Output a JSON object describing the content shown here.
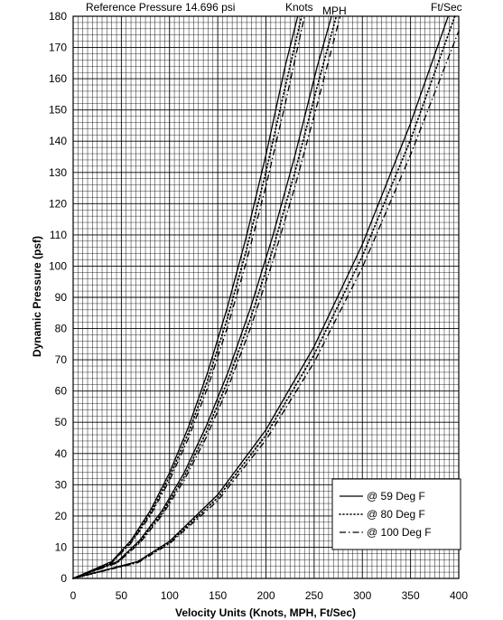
{
  "chart_data": {
    "type": "line",
    "title": "",
    "annotation": "Reference Pressure 14.696 psi",
    "xlabel": "Velocity Units (Knots, MPH, Ft/Sec)",
    "ylabel": "Dynamic Pressure (psf)",
    "xlim": [
      0,
      400
    ],
    "ylim": [
      0,
      180
    ],
    "x_ticks": [
      "0",
      "50",
      "100",
      "150",
      "200",
      "250",
      "300",
      "350",
      "400"
    ],
    "y_ticks": [
      "0",
      "10",
      "20",
      "30",
      "40",
      "50",
      "60",
      "70",
      "80",
      "90",
      "100",
      "110",
      "120",
      "130",
      "140",
      "150",
      "160",
      "170",
      "180"
    ],
    "grid": true,
    "curve_labels": [
      "Knots",
      "MPH",
      "Ft/Sec"
    ],
    "legend": {
      "position": "bottom-right",
      "entries": [
        "@ 59 Deg F",
        "@ 80 Deg F",
        "@ 100 Deg F"
      ]
    },
    "series": [
      {
        "name": "@ 59 Deg F",
        "unit": "Knots",
        "style": "solid",
        "points": [
          [
            0,
            0
          ],
          [
            40,
            5.4
          ],
          [
            60,
            12.2
          ],
          [
            80,
            21.7
          ],
          [
            100,
            33.9
          ],
          [
            120,
            48.8
          ],
          [
            140,
            66.4
          ],
          [
            160,
            86.8
          ],
          [
            180,
            109.8
          ],
          [
            200,
            135.6
          ],
          [
            220,
            164.1
          ],
          [
            233,
            180
          ]
        ]
      },
      {
        "name": "@ 80 Deg F",
        "unit": "Knots",
        "style": "dotted",
        "points": [
          [
            0,
            0
          ],
          [
            40,
            5.2
          ],
          [
            60,
            11.7
          ],
          [
            80,
            20.8
          ],
          [
            100,
            32.6
          ],
          [
            120,
            46.9
          ],
          [
            140,
            63.8
          ],
          [
            160,
            83.3
          ],
          [
            180,
            105.4
          ],
          [
            200,
            130.2
          ],
          [
            220,
            157.5
          ],
          [
            237,
            180
          ]
        ]
      },
      {
        "name": "@ 100 Deg F",
        "unit": "Knots",
        "style": "dashdot",
        "points": [
          [
            0,
            0
          ],
          [
            40,
            5.0
          ],
          [
            60,
            11.3
          ],
          [
            80,
            20.1
          ],
          [
            100,
            31.4
          ],
          [
            120,
            45.2
          ],
          [
            140,
            61.5
          ],
          [
            160,
            80.4
          ],
          [
            180,
            101.7
          ],
          [
            200,
            125.6
          ],
          [
            220,
            152.0
          ],
          [
            240,
            180
          ]
        ]
      },
      {
        "name": "@ 59 Deg F",
        "unit": "MPH",
        "style": "solid",
        "points": [
          [
            0,
            0
          ],
          [
            46,
            5.4
          ],
          [
            69,
            12.2
          ],
          [
            92,
            21.6
          ],
          [
            115,
            33.8
          ],
          [
            138,
            48.7
          ],
          [
            161,
            66.3
          ],
          [
            184,
            86.6
          ],
          [
            207,
            109.6
          ],
          [
            230,
            135.3
          ],
          [
            253,
            163.7
          ],
          [
            268,
            180
          ]
        ]
      },
      {
        "name": "@ 80 Deg F",
        "unit": "MPH",
        "style": "dotted",
        "points": [
          [
            0,
            0
          ],
          [
            46,
            5.2
          ],
          [
            69,
            11.7
          ],
          [
            92,
            20.8
          ],
          [
            115,
            32.5
          ],
          [
            138,
            46.8
          ],
          [
            161,
            63.7
          ],
          [
            184,
            83.2
          ],
          [
            207,
            105.3
          ],
          [
            230,
            130.0
          ],
          [
            253,
            157.3
          ],
          [
            273,
            180
          ]
        ]
      },
      {
        "name": "@ 100 Deg F",
        "unit": "MPH",
        "style": "dashdot",
        "points": [
          [
            0,
            0
          ],
          [
            46,
            5.0
          ],
          [
            69,
            11.3
          ],
          [
            92,
            20.1
          ],
          [
            115,
            31.3
          ],
          [
            138,
            45.1
          ],
          [
            161,
            61.4
          ],
          [
            184,
            80.2
          ],
          [
            207,
            101.5
          ],
          [
            230,
            125.3
          ],
          [
            253,
            151.6
          ],
          [
            277,
            180
          ]
        ]
      },
      {
        "name": "@ 59 Deg F",
        "unit": "Ft/Sec",
        "style": "solid",
        "points": [
          [
            0,
            0
          ],
          [
            67,
            5.4
          ],
          [
            100,
            11.9
          ],
          [
            150,
            26.8
          ],
          [
            200,
            47.6
          ],
          [
            250,
            74.3
          ],
          [
            300,
            107.0
          ],
          [
            350,
            145.7
          ],
          [
            389,
            180
          ]
        ]
      },
      {
        "name": "@ 80 Deg F",
        "unit": "Ft/Sec",
        "style": "dotted",
        "points": [
          [
            0,
            0
          ],
          [
            67,
            5.2
          ],
          [
            100,
            11.5
          ],
          [
            150,
            25.8
          ],
          [
            200,
            45.9
          ],
          [
            250,
            71.7
          ],
          [
            300,
            103.2
          ],
          [
            350,
            140.4
          ],
          [
            396,
            180
          ]
        ]
      },
      {
        "name": "@ 100 Deg F",
        "unit": "Ft/Sec",
        "style": "dashdot",
        "points": [
          [
            0,
            0
          ],
          [
            67,
            5.0
          ],
          [
            100,
            11.1
          ],
          [
            150,
            24.9
          ],
          [
            200,
            44.3
          ],
          [
            250,
            69.2
          ],
          [
            300,
            99.6
          ],
          [
            350,
            135.6
          ],
          [
            400,
            175.3
          ]
        ]
      }
    ]
  }
}
